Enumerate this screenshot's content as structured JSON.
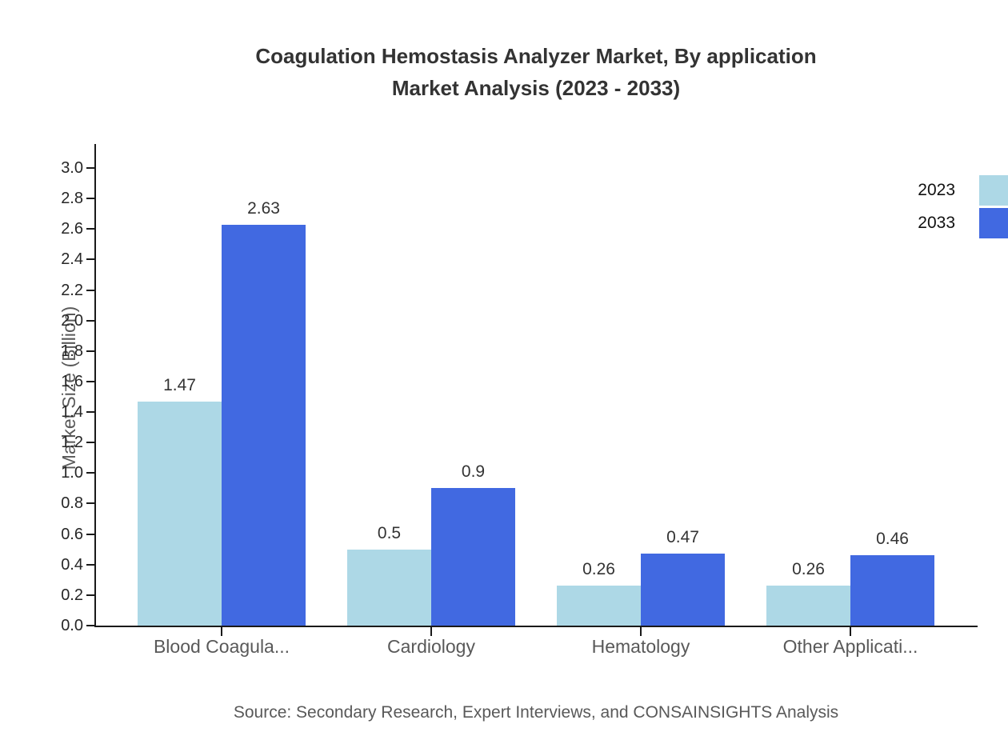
{
  "title": {
    "line1": "Coagulation Hemostasis Analyzer Market, By application",
    "line2": "Market Analysis (2023 - 2033)"
  },
  "source": "Source: Secondary Research, Expert Interviews, and CONSAINSIGHTS Analysis",
  "chart_data": {
    "type": "bar",
    "title": "Coagulation Hemostasis Analyzer Market, By application Market Analysis (2023 - 2033)",
    "categories": [
      "Blood Coagula...",
      "Cardiology",
      "Hematology",
      "Other Applicati..."
    ],
    "series": [
      {
        "name": "2023",
        "color": "#ADD8E6",
        "values": [
          1.47,
          0.5,
          0.26,
          0.26
        ]
      },
      {
        "name": "2033",
        "color": "#4169E1",
        "values": [
          2.63,
          0.9,
          0.47,
          0.46
        ]
      }
    ],
    "xlabel": "",
    "ylabel": "Market Size (Billion)",
    "ylim": [
      0.0,
      3.0
    ],
    "ytick_step": 0.2,
    "grid": false,
    "legend_position": "top-right",
    "value_labels_shown": true,
    "colors": {
      "axis": "#1a1a1a",
      "tick_label": "#262626",
      "muted_text": "#595959",
      "title_text": "#333333"
    }
  }
}
